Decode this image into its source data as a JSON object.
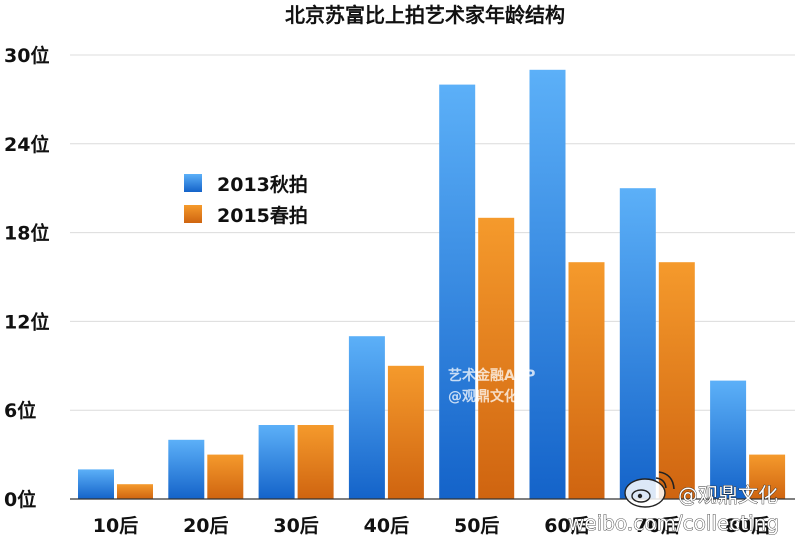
{
  "chart_data": {
    "type": "bar",
    "title": "北京苏富比上拍艺术家年龄结构",
    "xlabel": "",
    "ylabel": "",
    "categories": [
      "10后",
      "20后",
      "30后",
      "40后",
      "50后",
      "60后",
      "70后",
      "80后"
    ],
    "series": [
      {
        "name": "2013秋拍",
        "color": "#3b8fe6",
        "values": [
          2,
          4,
          5,
          11,
          28,
          29,
          21,
          8
        ]
      },
      {
        "name": "2015春拍",
        "color": "#e8801a",
        "values": [
          1,
          3,
          5,
          9,
          19,
          16,
          16,
          3
        ]
      }
    ],
    "ylim": [
      0,
      30
    ],
    "yticks": [
      "0位",
      "6位",
      "12位",
      "18位",
      "24位",
      "30位"
    ],
    "ytick_values": [
      0,
      6,
      12,
      18,
      24,
      30
    ],
    "grid": true,
    "legend_position": "upper-left"
  },
  "watermarks": {
    "center_line1": "艺术金融APP",
    "center_line2": "@观鼎文化",
    "corner_handle": "@观鼎文化",
    "corner_url": "weibo.com/collecting"
  }
}
